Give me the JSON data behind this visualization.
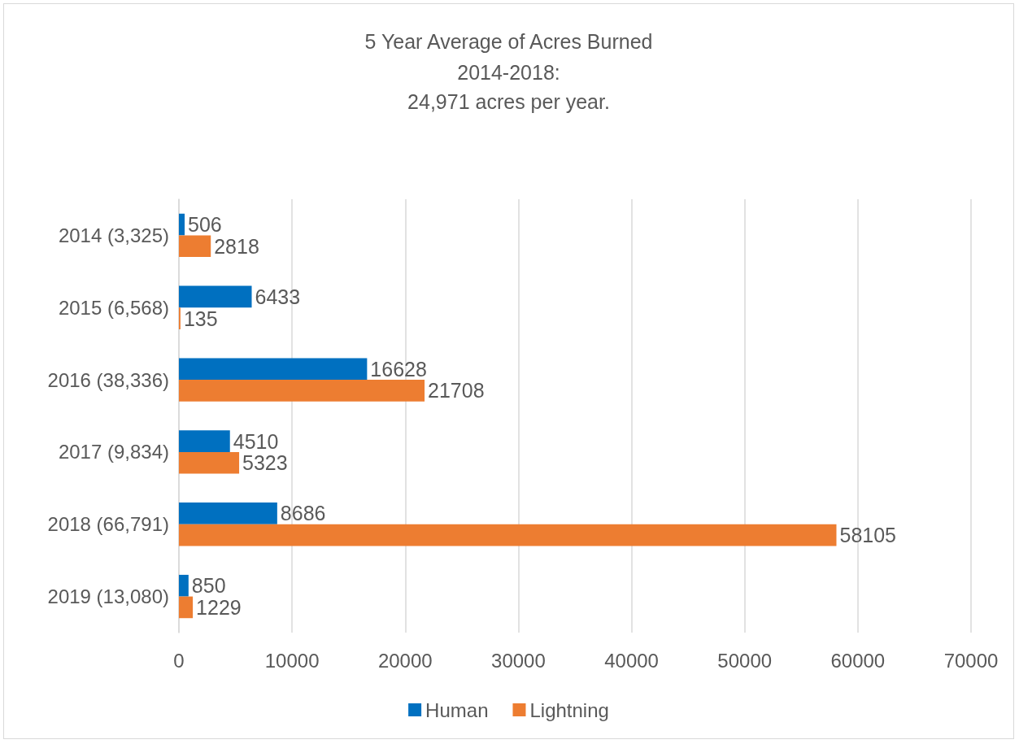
{
  "chart_data": {
    "type": "bar",
    "orientation": "horizontal",
    "title": "5 Year Average of Acres Burned",
    "subtitle": "2014-2018:\n24,971 acres per year.",
    "categories": [
      "2014 (3,325)",
      "2015 (6,568)",
      "2016 (38,336)",
      "2017 (9,834)",
      "2018 (66,791)",
      "2019 (13,080)"
    ],
    "series": [
      {
        "name": "Human",
        "color": "#0070c0",
        "values": [
          506,
          6433,
          16628,
          4510,
          8686,
          850
        ]
      },
      {
        "name": "Lightning",
        "color": "#ed7d31",
        "values": [
          2818,
          135,
          21708,
          5323,
          58105,
          1229
        ]
      }
    ],
    "xlim": [
      0,
      70000
    ],
    "xticks": [
      0,
      10000,
      20000,
      30000,
      40000,
      50000,
      60000,
      70000
    ],
    "grid": "x",
    "legend": "bottom",
    "data_labels": true
  }
}
